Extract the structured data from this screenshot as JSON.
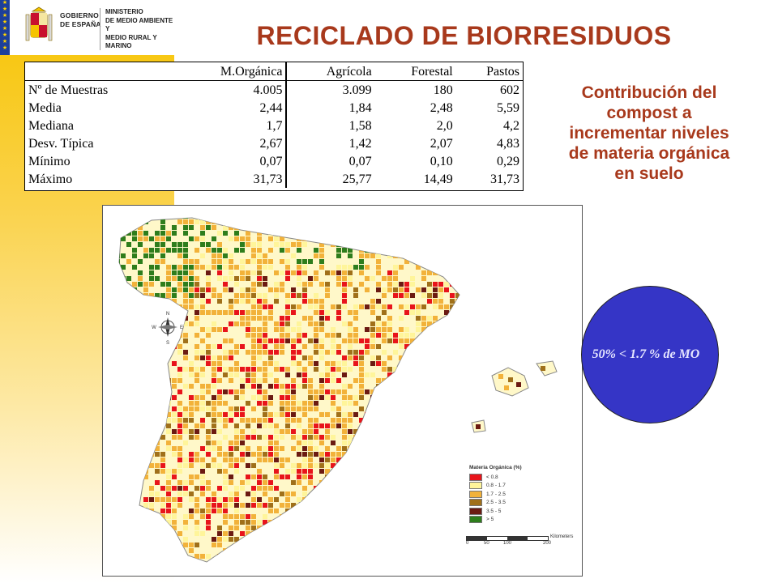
{
  "header": {
    "gobierno": [
      "GOBIERNO",
      "DE ESPAÑA"
    ],
    "ministerio": [
      "MINISTERIO",
      "DE MEDIO AMBIENTE Y",
      "MEDIO RURAL Y",
      "MARINO"
    ]
  },
  "title": "RECICLADO DE BIORRESIDUOS",
  "table": {
    "headers": [
      "",
      "M.Orgánica",
      "Agrícola",
      "Forestal",
      "Pastos"
    ],
    "rows": [
      [
        "Nº de Muestras",
        "4.005",
        "3.099",
        "180",
        "602"
      ],
      [
        "Media",
        "2,44",
        "1,84",
        "2,48",
        "5,59"
      ],
      [
        "Mediana",
        "1,7",
        "1,58",
        "2,0",
        "4,2"
      ],
      [
        "Desv. Típica",
        "2,67",
        "1,42",
        "2,07",
        "4,83"
      ],
      [
        "Mínimo",
        "0,07",
        "0,07",
        "0,10",
        "0,29"
      ],
      [
        "Máximo",
        "31,73",
        "25,77",
        "14,49",
        "31,73"
      ]
    ]
  },
  "contribution_text": [
    "Contribución del",
    "compost  a",
    "incrementar niveles",
    "de materia orgánica",
    "en suelo"
  ],
  "map": {
    "compass": [
      "N",
      "E",
      "S",
      "W"
    ],
    "legend_title": "Materia Orgánica (%)",
    "legend": [
      {
        "label": "< 0.8",
        "color": "#e8141b"
      },
      {
        "label": "0.8 - 1.7",
        "color": "#fff59a"
      },
      {
        "label": "1.7 - 2.5",
        "color": "#f2b23a"
      },
      {
        "label": "2.5 - 3.5",
        "color": "#a0701a"
      },
      {
        "label": "3.5 - 5",
        "color": "#6b1a12"
      },
      {
        "label": "> 5",
        "color": "#2e7d1c"
      }
    ],
    "scale_labels": [
      "0",
      "50",
      "100",
      "200"
    ],
    "scale_unit": "Kilometers"
  },
  "bubble_text": "50% < 1.7 % de MO",
  "colors": {
    "title": "#a8391c",
    "bubble": "#3535c6",
    "band": "#f7c400"
  }
}
